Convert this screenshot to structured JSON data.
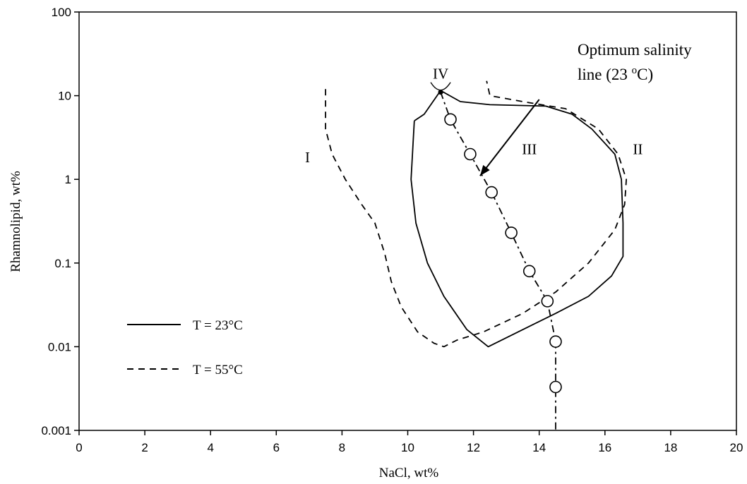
{
  "chart_data": {
    "type": "line",
    "xlabel": "NaCl, wt%",
    "ylabel": "Rhamnolipid, wt%",
    "xlim": [
      0,
      20
    ],
    "ylim": [
      0.001,
      100
    ],
    "yscale": "log",
    "x_ticks": [
      "0",
      "2",
      "4",
      "6",
      "8",
      "10",
      "12",
      "14",
      "16",
      "18",
      "20"
    ],
    "x_tick_values": [
      0,
      2,
      4,
      6,
      8,
      10,
      12,
      14,
      16,
      18,
      20
    ],
    "y_ticks": [
      "0.001",
      "0.01",
      "0.1",
      "1",
      "10",
      "100"
    ],
    "y_tick_values": [
      0.001,
      0.01,
      0.1,
      1,
      10,
      100
    ],
    "grid": false,
    "legend_position": "bottom-left",
    "annotation": {
      "text_line1": "Optimum salinity",
      "text_line2_prefix": "line (23 ",
      "text_line2_sup": "o",
      "text_line2_suffix": "C)",
      "arrow_from": [
        14.0,
        9.0
      ],
      "arrow_to": [
        12.2,
        1.1
      ]
    },
    "region_labels": [
      {
        "text": "I",
        "x": 6.95,
        "y": 1.6
      },
      {
        "text": "II",
        "x": 17.0,
        "y": 2.0
      },
      {
        "text": "III",
        "x": 13.7,
        "y": 2.0
      },
      {
        "text": "IV",
        "x": 11.0,
        "y": 16
      }
    ],
    "series": [
      {
        "name": "T = 23°C",
        "style": "solid",
        "color": "#000000",
        "points": [
          [
            10.2,
            5.0
          ],
          [
            10.1,
            1.0
          ],
          [
            10.25,
            0.3
          ],
          [
            10.6,
            0.1
          ],
          [
            11.1,
            0.04
          ],
          [
            11.8,
            0.016
          ],
          [
            12.45,
            0.01
          ],
          [
            13.5,
            0.016
          ],
          [
            14.5,
            0.025
          ],
          [
            15.5,
            0.04
          ],
          [
            16.2,
            0.07
          ],
          [
            16.55,
            0.12
          ],
          [
            16.55,
            0.3
          ],
          [
            16.5,
            1.0
          ],
          [
            16.3,
            2.0
          ],
          [
            15.6,
            4.0
          ],
          [
            15.0,
            6.0
          ],
          [
            14.2,
            7.5
          ],
          [
            12.5,
            7.8
          ],
          [
            11.6,
            8.5
          ],
          [
            11.0,
            11.5
          ],
          [
            10.5,
            6.0
          ],
          [
            10.2,
            5.0
          ]
        ]
      },
      {
        "name": "T = 55°C",
        "style": "dashed",
        "color": "#000000",
        "points": [
          [
            7.5,
            12.0
          ],
          [
            7.5,
            4.0
          ],
          [
            7.7,
            2.0
          ],
          [
            8.1,
            1.0
          ],
          [
            8.6,
            0.5
          ],
          [
            9.0,
            0.3
          ],
          [
            9.3,
            0.13
          ],
          [
            9.5,
            0.06
          ],
          [
            9.8,
            0.03
          ],
          [
            10.3,
            0.015
          ],
          [
            10.8,
            0.011
          ],
          [
            11.1,
            0.01
          ],
          [
            11.5,
            0.012
          ],
          [
            12.3,
            0.015
          ],
          [
            13.5,
            0.025
          ],
          [
            14.5,
            0.045
          ],
          [
            15.5,
            0.1
          ],
          [
            16.3,
            0.25
          ],
          [
            16.6,
            0.5
          ],
          [
            16.65,
            1.0
          ],
          [
            16.4,
            2.0
          ],
          [
            15.8,
            4.0
          ],
          [
            14.8,
            7.0
          ],
          [
            13.5,
            8.5
          ],
          [
            12.5,
            10.0
          ],
          [
            12.4,
            15.0
          ]
        ]
      },
      {
        "name": "Optimum salinity line (23 °C)",
        "style": "dash-dot",
        "color": "#000000",
        "points": [
          [
            11.0,
            11.0
          ],
          [
            11.3,
            5.2
          ],
          [
            11.9,
            2.0
          ],
          [
            12.55,
            0.7
          ],
          [
            13.15,
            0.23
          ],
          [
            13.7,
            0.08
          ],
          [
            14.25,
            0.035
          ],
          [
            14.5,
            0.0115
          ],
          [
            14.5,
            0.0033
          ],
          [
            14.5,
            0.001
          ]
        ],
        "markers": [
          [
            11.3,
            5.2
          ],
          [
            11.9,
            2.0
          ],
          [
            12.55,
            0.7
          ],
          [
            13.15,
            0.23
          ],
          [
            13.7,
            0.08
          ],
          [
            14.25,
            0.035
          ],
          [
            14.5,
            0.0115
          ],
          [
            14.5,
            0.0033
          ]
        ]
      }
    ]
  }
}
